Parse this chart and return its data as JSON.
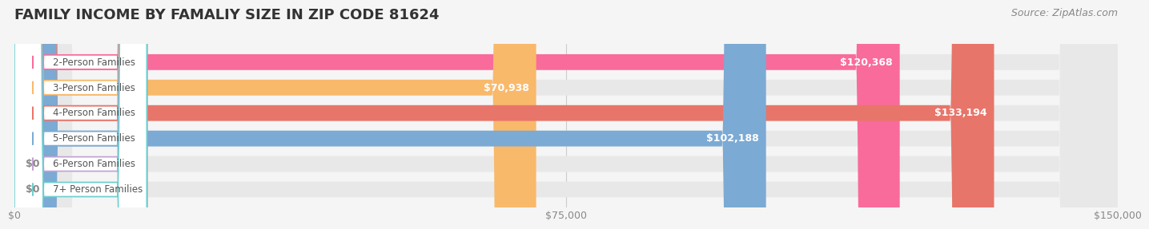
{
  "title": "FAMILY INCOME BY FAMALIY SIZE IN ZIP CODE 81624",
  "source_text": "Source: ZipAtlas.com",
  "categories": [
    "2-Person Families",
    "3-Person Families",
    "4-Person Families",
    "5-Person Families",
    "6-Person Families",
    "7+ Person Families"
  ],
  "values": [
    120368,
    70938,
    133194,
    102188,
    0,
    0
  ],
  "bar_colors": [
    "#F96B9B",
    "#F9B96B",
    "#E8756A",
    "#7BAAD4",
    "#C4A0D4",
    "#6ECECE"
  ],
  "label_colors": [
    "#F96B9B",
    "#F9B96B",
    "#E8756A",
    "#7BAAD4",
    "#C4A0D4",
    "#6ECECE"
  ],
  "value_labels": [
    "$120,368",
    "$70,938",
    "$133,194",
    "$102,188",
    "$0",
    "$0"
  ],
  "xlim": [
    0,
    150000
  ],
  "xticks": [
    0,
    75000,
    150000
  ],
  "xtick_labels": [
    "$0",
    "$75,000",
    "$150,000"
  ],
  "background_color": "#f5f5f5",
  "bar_bg_color": "#e8e8e8",
  "title_fontsize": 13,
  "source_fontsize": 9
}
